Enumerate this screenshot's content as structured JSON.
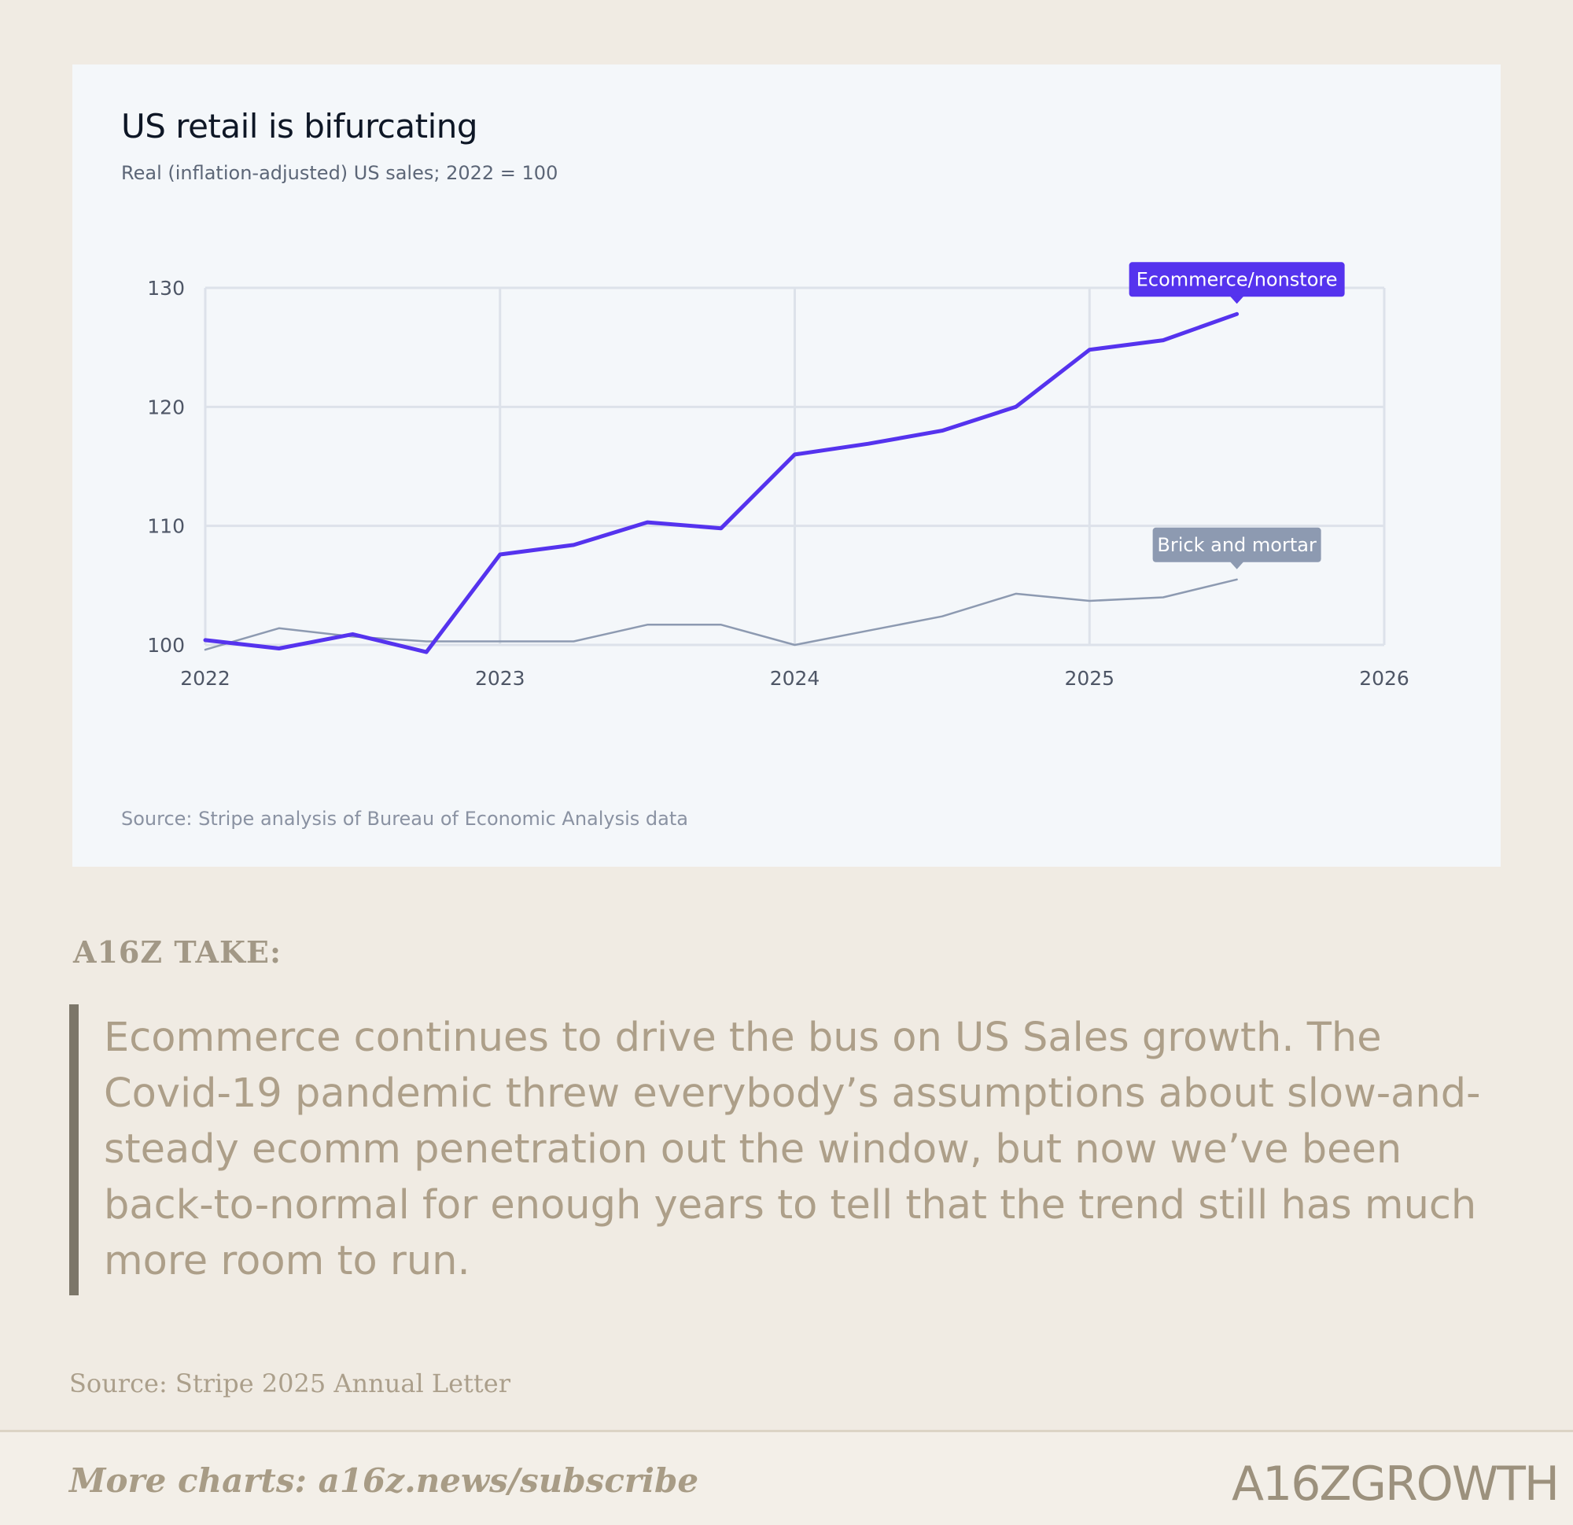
{
  "chart_data": {
    "type": "line",
    "title": "US retail is bifurcating",
    "subtitle": "Real (inflation-adjusted) US sales; 2022 = 100",
    "source": "Source: Stripe analysis of Bureau of Economic Analysis data",
    "xlim": [
      2022,
      2026
    ],
    "ylim": [
      100,
      130
    ],
    "x_ticks": [
      2022,
      2023,
      2024,
      2025,
      2026
    ],
    "x_tick_labels": [
      "2022",
      "2023",
      "2024",
      "2025",
      "2026"
    ],
    "y_ticks": [
      100,
      110,
      120,
      130
    ],
    "y_tick_labels": [
      "100",
      "110",
      "120",
      "130"
    ],
    "grid": true,
    "series": [
      {
        "name": "Ecommerce/nonstore",
        "color": "#5533ee",
        "x": [
          2022.0,
          2022.25,
          2022.5,
          2022.75,
          2023.0,
          2023.25,
          2023.5,
          2023.75,
          2024.0,
          2024.25,
          2024.5,
          2024.75,
          2025.0,
          2025.25,
          2025.5
        ],
        "values": [
          100.4,
          99.7,
          100.9,
          99.4,
          107.6,
          108.4,
          110.3,
          109.8,
          116.0,
          116.9,
          118.0,
          120.0,
          124.8,
          125.6,
          127.8
        ]
      },
      {
        "name": "Brick and mortar",
        "color": "#8d9ab1",
        "x": [
          2022.0,
          2022.25,
          2022.5,
          2022.75,
          2023.0,
          2023.25,
          2023.5,
          2023.75,
          2024.0,
          2024.25,
          2024.5,
          2024.75,
          2025.0,
          2025.25,
          2025.5
        ],
        "values": [
          99.6,
          101.4,
          100.7,
          100.3,
          100.3,
          100.3,
          101.7,
          101.7,
          100.0,
          101.2,
          102.4,
          104.3,
          103.7,
          104.0,
          105.5
        ]
      }
    ]
  },
  "take": {
    "label": "A16Z TAKE:",
    "quote": "Ecommerce continues to drive the bus on US Sales growth. The Covid-19 pandemic threw everybody’s assumptions about slow-and-steady ecomm penetration out the window, but now we’ve been back-to-normal for enough years to tell that the trend still has much more room to run."
  },
  "letter_source": "Source: Stripe 2025 Annual Letter",
  "footer": {
    "cta": "More charts: a16z.news/subscribe",
    "brand": "A16ZGROWTH"
  }
}
